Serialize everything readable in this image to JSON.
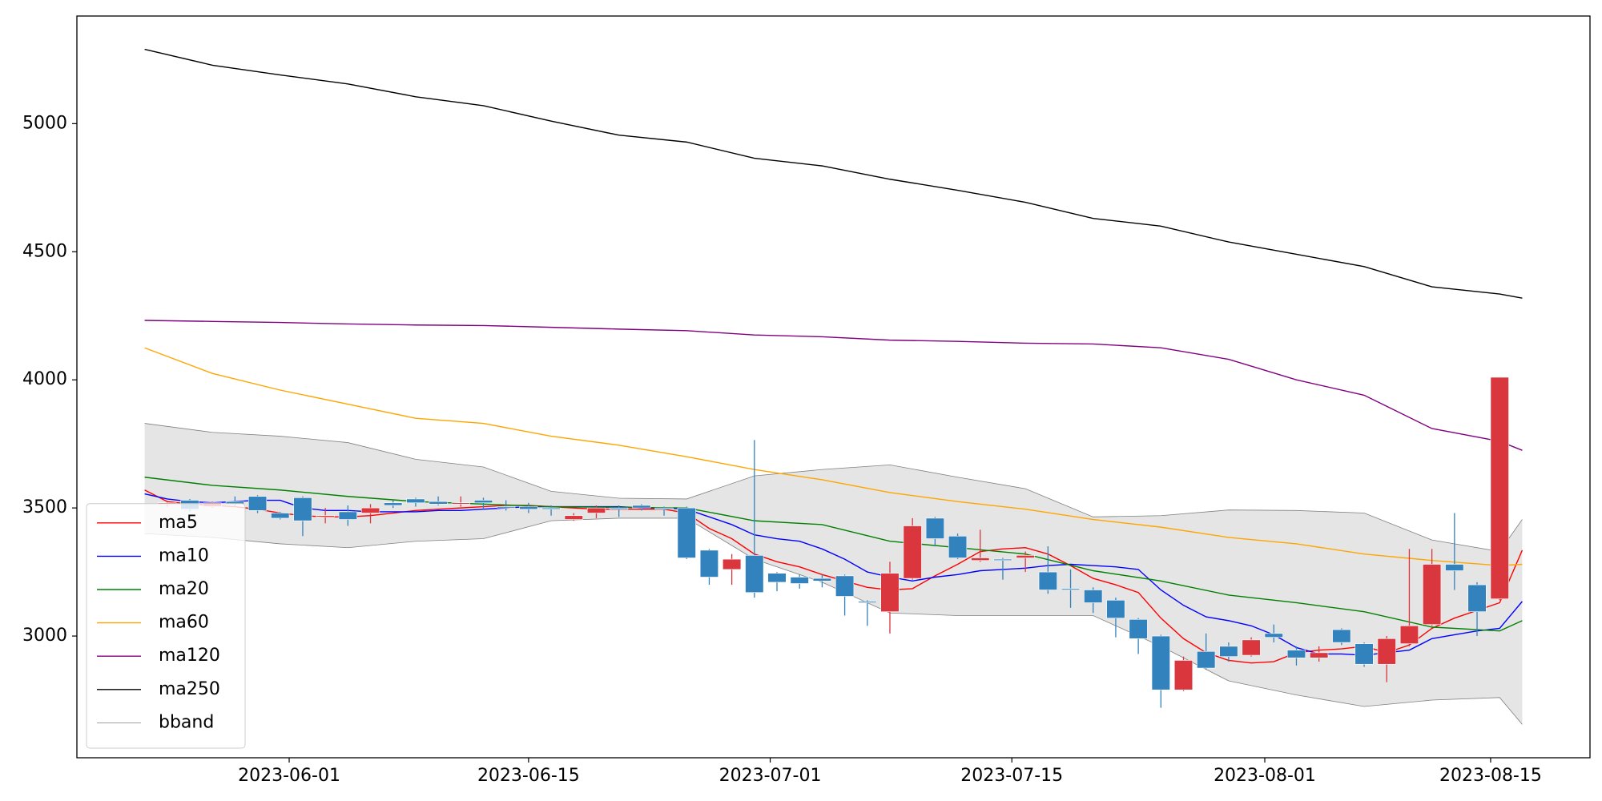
{
  "chart_data": {
    "type": "candlestick",
    "xlim": [
      -3,
      64
    ],
    "xticks": [
      {
        "value": 6.4,
        "label": "2023-06-01"
      },
      {
        "value": 17.0,
        "label": "2023-06-15"
      },
      {
        "value": 27.7,
        "label": "2023-07-01"
      },
      {
        "value": 38.4,
        "label": "2023-07-15"
      },
      {
        "value": 49.6,
        "label": "2023-08-01"
      },
      {
        "value": 59.6,
        "label": "2023-08-15"
      }
    ],
    "ylim": [
      2525,
      5420
    ],
    "yticks": [
      3000,
      3500,
      4000,
      4500,
      5000
    ],
    "grid": false,
    "legend": "lower left",
    "up_color": "#d9363e",
    "down_color": "#3182bd",
    "x": [
      0,
      1,
      2,
      3,
      4,
      5,
      6,
      7,
      8,
      9,
      10,
      11,
      12,
      13,
      14,
      15,
      16,
      17,
      18,
      19,
      20,
      21,
      22,
      23,
      24,
      25,
      26,
      27,
      28,
      29,
      30,
      31,
      32,
      33,
      34,
      35,
      36,
      37,
      38,
      39,
      40,
      41,
      42,
      43,
      44,
      45,
      46,
      47,
      48,
      49,
      50,
      51,
      52,
      53,
      54,
      55,
      56,
      57,
      58,
      59,
      60,
      61
    ],
    "open": [
      null,
      3515,
      3530,
      3505,
      3525,
      3545,
      3480,
      3540,
      3465,
      3485,
      3480,
      3520,
      3535,
      3525,
      3515,
      3530,
      3505,
      3505,
      3500,
      3455,
      3480,
      3500,
      3510,
      3500,
      3500,
      3335,
      3260,
      3315,
      3245,
      3230,
      3225,
      3235,
      3135,
      3095,
      3225,
      3460,
      3390,
      3295,
      3300,
      3305,
      3250,
      3185,
      3180,
      3140,
      3065,
      3000,
      2790,
      2940,
      2960,
      2925,
      3010,
      2945,
      2915,
      3025,
      2970,
      2890,
      2970,
      3045,
      3280,
      3200,
      3145,
      null
    ],
    "high": [
      null,
      3525,
      3535,
      3525,
      3545,
      3550,
      3485,
      3545,
      3500,
      3510,
      3515,
      3530,
      3540,
      3545,
      3545,
      3540,
      3530,
      3520,
      3510,
      3480,
      3510,
      3510,
      3515,
      3505,
      3505,
      3340,
      3320,
      3765,
      3250,
      3240,
      3240,
      3240,
      3140,
      3290,
      3460,
      3465,
      3400,
      3415,
      3305,
      3330,
      3350,
      3260,
      3190,
      3150,
      3070,
      3005,
      2920,
      3010,
      2975,
      2995,
      3045,
      2960,
      2960,
      3030,
      2975,
      3000,
      3340,
      3340,
      3480,
      3210,
      4010,
      null
    ],
    "low": [
      null,
      3505,
      3485,
      3500,
      3505,
      3480,
      3455,
      3390,
      3440,
      3430,
      3440,
      3500,
      3505,
      3510,
      3505,
      3495,
      3490,
      3480,
      3470,
      3450,
      3460,
      3465,
      3490,
      3470,
      3300,
      3200,
      3200,
      3150,
      3175,
      3185,
      3190,
      3080,
      3040,
      3010,
      3220,
      3350,
      3300,
      3290,
      3220,
      3250,
      3165,
      3110,
      3090,
      2995,
      2930,
      2720,
      2785,
      2870,
      2900,
      2920,
      2975,
      2885,
      2900,
      2965,
      2880,
      2820,
      2960,
      3040,
      3180,
      3000,
      3140,
      null
    ],
    "close": [
      null,
      3520,
      3495,
      3520,
      3515,
      3490,
      3460,
      3450,
      3470,
      3455,
      3500,
      3510,
      3520,
      3515,
      3520,
      3520,
      3500,
      3495,
      3495,
      3470,
      3500,
      3495,
      3500,
      3495,
      3305,
      3230,
      3300,
      3170,
      3210,
      3205,
      3215,
      3155,
      3130,
      3245,
      3430,
      3380,
      3305,
      3305,
      3295,
      3315,
      3180,
      3180,
      3130,
      3070,
      2990,
      2790,
      2905,
      2875,
      2920,
      2985,
      2995,
      2915,
      2935,
      2975,
      2890,
      2990,
      3040,
      3280,
      3255,
      3095,
      4010,
      null
    ],
    "series": [
      {
        "name": "ma5",
        "color": "#ff0000",
        "x": [
          0,
          1,
          2,
          3,
          4,
          5,
          6,
          7,
          8,
          9,
          10,
          11,
          12,
          13,
          14,
          15,
          16,
          17,
          18,
          19,
          20,
          21,
          22,
          23,
          24,
          25,
          26,
          27,
          28,
          29,
          30,
          31,
          32,
          33,
          34,
          35,
          36,
          37,
          38,
          39,
          40,
          41,
          42,
          43,
          44,
          45,
          46,
          47,
          48,
          49,
          50,
          51,
          52,
          53,
          54,
          55,
          56,
          57,
          58,
          59,
          60,
          61
        ],
        "values": [
          3570,
          3525,
          3515,
          3510,
          3505,
          3495,
          3480,
          3470,
          3465,
          3465,
          3470,
          3480,
          3490,
          3495,
          3500,
          3505,
          3510,
          3510,
          3505,
          3500,
          3495,
          3495,
          3495,
          3495,
          3480,
          3420,
          3380,
          3320,
          3290,
          3270,
          3240,
          3215,
          3190,
          3180,
          3185,
          3235,
          3280,
          3330,
          3340,
          3345,
          3320,
          3275,
          3225,
          3200,
          3170,
          3070,
          2990,
          2935,
          2905,
          2895,
          2900,
          2935,
          2945,
          2950,
          2960,
          2935,
          2965,
          3030,
          3070,
          3100,
          3130,
          3335
        ]
      },
      {
        "name": "ma10",
        "color": "#0000ff",
        "x": [
          0,
          1,
          2,
          3,
          4,
          5,
          6,
          7,
          8,
          9,
          10,
          11,
          12,
          13,
          14,
          15,
          16,
          17,
          18,
          19,
          20,
          21,
          22,
          23,
          24,
          25,
          26,
          27,
          28,
          29,
          30,
          31,
          32,
          33,
          34,
          35,
          36,
          37,
          38,
          39,
          40,
          41,
          42,
          43,
          44,
          45,
          46,
          47,
          48,
          49,
          50,
          51,
          52,
          53,
          54,
          55,
          56,
          57,
          58,
          59,
          60,
          61
        ],
        "values": [
          3555,
          3535,
          3525,
          3520,
          3525,
          3530,
          3530,
          3500,
          3490,
          3490,
          3485,
          3485,
          3485,
          3490,
          3490,
          3495,
          3500,
          3505,
          3505,
          3505,
          3505,
          3505,
          3500,
          3500,
          3495,
          3465,
          3435,
          3395,
          3380,
          3370,
          3340,
          3300,
          3250,
          3230,
          3215,
          3230,
          3240,
          3255,
          3260,
          3265,
          3275,
          3280,
          3275,
          3270,
          3260,
          3180,
          3120,
          3075,
          3060,
          3040,
          3005,
          2955,
          2930,
          2930,
          2925,
          2935,
          2945,
          2990,
          3005,
          3020,
          3030,
          3135
        ]
      },
      {
        "name": "ma20",
        "color": "#008000",
        "x": [
          0,
          3,
          6,
          9,
          12,
          15,
          18,
          21,
          24,
          27,
          30,
          33,
          36,
          39,
          42,
          45,
          48,
          51,
          54,
          57,
          60,
          61
        ],
        "values": [
          3620,
          3588,
          3570,
          3545,
          3525,
          3515,
          3505,
          3502,
          3500,
          3450,
          3435,
          3370,
          3345,
          3320,
          3255,
          3215,
          3160,
          3130,
          3095,
          3035,
          3020,
          3060
        ]
      },
      {
        "name": "ma60",
        "color": "#ffa500",
        "x": [
          0,
          3,
          6,
          9,
          12,
          15,
          18,
          21,
          24,
          27,
          30,
          33,
          36,
          39,
          42,
          45,
          48,
          51,
          54,
          57,
          60,
          61
        ],
        "values": [
          4125,
          4025,
          3960,
          3905,
          3850,
          3830,
          3780,
          3745,
          3700,
          3650,
          3610,
          3560,
          3525,
          3495,
          3455,
          3425,
          3385,
          3360,
          3320,
          3295,
          3275,
          3280
        ]
      },
      {
        "name": "ma120",
        "color": "#800080",
        "x": [
          0,
          3,
          6,
          9,
          12,
          15,
          18,
          21,
          24,
          27,
          30,
          33,
          36,
          39,
          42,
          45,
          48,
          51,
          54,
          57,
          60,
          61
        ],
        "values": [
          4232,
          4228,
          4224,
          4218,
          4214,
          4212,
          4205,
          4198,
          4192,
          4175,
          4168,
          4155,
          4150,
          4143,
          4140,
          4125,
          4080,
          4000,
          3940,
          3810,
          3760,
          3725
        ]
      },
      {
        "name": "ma250",
        "color": "#000000",
        "x": [
          0,
          3,
          6,
          9,
          12,
          15,
          18,
          21,
          24,
          27,
          30,
          33,
          36,
          39,
          42,
          45,
          48,
          51,
          54,
          57,
          60,
          61
        ],
        "values": [
          5290,
          5228,
          5190,
          5155,
          5105,
          5070,
          5010,
          4955,
          4928,
          4865,
          4835,
          4783,
          4740,
          4693,
          4630,
          4600,
          4538,
          4490,
          4442,
          4363,
          4335,
          4319
        ]
      },
      {
        "name": "bband",
        "color": "#808080",
        "fill": "#e5e5e5",
        "x": [
          0,
          3,
          6,
          9,
          12,
          15,
          18,
          21,
          24,
          27,
          30,
          33,
          36,
          39,
          42,
          45,
          48,
          51,
          54,
          57,
          60,
          61
        ],
        "upper": [
          3830,
          3795,
          3780,
          3755,
          3690,
          3660,
          3565,
          3538,
          3535,
          3625,
          3650,
          3668,
          3620,
          3575,
          3465,
          3470,
          3492,
          3490,
          3480,
          3375,
          3330,
          3455
        ],
        "lower": [
          3400,
          3385,
          3360,
          3345,
          3370,
          3380,
          3450,
          3460,
          3460,
          3300,
          3210,
          3090,
          3080,
          3080,
          3080,
          2960,
          2825,
          2770,
          2725,
          2750,
          2760,
          2655
        ]
      }
    ]
  }
}
